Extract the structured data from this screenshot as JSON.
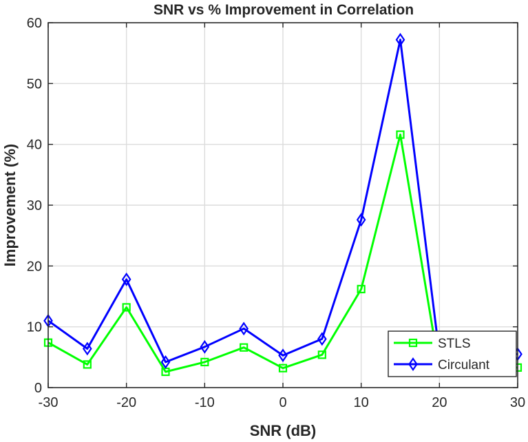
{
  "chart_data": {
    "type": "line",
    "title": "SNR vs % Improvement in Correlation",
    "xlabel": "SNR (dB)",
    "ylabel": "Improvement (%)",
    "xlim": [
      -30,
      30
    ],
    "ylim": [
      0,
      60
    ],
    "xticks": [
      "-30",
      "-20",
      "-10",
      "0",
      "10",
      "20",
      "30"
    ],
    "yticks": [
      "0",
      "10",
      "20",
      "30",
      "40",
      "50",
      "60"
    ],
    "grid": true,
    "legend_position": "bottom-right",
    "x": [
      -30,
      -25,
      -20,
      -15,
      -10,
      -5,
      0,
      5,
      10,
      15,
      20,
      25,
      30
    ],
    "series": [
      {
        "name": "STLS",
        "color": "#00ff00",
        "marker": "square",
        "values": [
          7.4,
          3.8,
          13.2,
          2.6,
          4.2,
          6.6,
          3.2,
          5.4,
          16.2,
          41.6,
          3.0,
          3.2,
          3.3
        ]
      },
      {
        "name": "Circulant",
        "color": "#0000ff",
        "marker": "diamond",
        "values": [
          11.0,
          6.4,
          17.8,
          4.2,
          6.7,
          9.7,
          5.3,
          8.0,
          27.6,
          57.2,
          5.5,
          5.4,
          5.5
        ]
      }
    ]
  }
}
